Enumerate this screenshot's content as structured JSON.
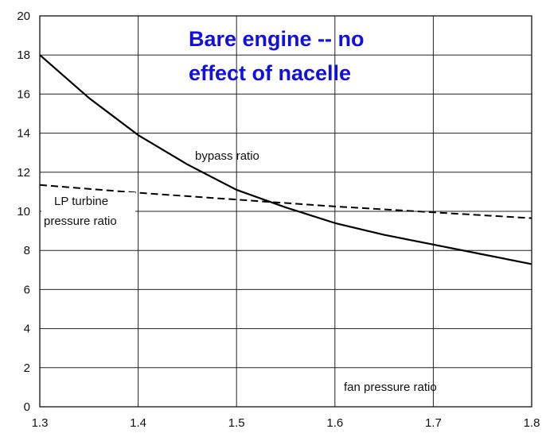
{
  "chart_data": {
    "type": "line",
    "title_lines": [
      "Bare engine -- no",
      "effect of nacelle"
    ],
    "title_color": "#1010e0",
    "xlabel": "fan pressure ratio",
    "ylabel": "",
    "xlim": [
      1.3,
      1.8
    ],
    "ylim": [
      0,
      20
    ],
    "x_ticks": [
      "1.3",
      "1.4",
      "1.5",
      "1.6",
      "1.7",
      "1.8"
    ],
    "y_ticks": [
      "0",
      "2",
      "4",
      "6",
      "8",
      "10",
      "12",
      "14",
      "16",
      "18",
      "20"
    ],
    "grid": true,
    "series": [
      {
        "name": "bypass ratio",
        "style": "solid",
        "color": "#000000",
        "label_lines": [
          "bypass ratio"
        ],
        "x": [
          1.3,
          1.35,
          1.4,
          1.45,
          1.5,
          1.55,
          1.6,
          1.65,
          1.7,
          1.75,
          1.8
        ],
        "y": [
          18.0,
          15.8,
          13.9,
          12.4,
          11.1,
          10.2,
          9.4,
          8.8,
          8.3,
          7.8,
          7.3
        ]
      },
      {
        "name": "LP turbine pressure ratio",
        "style": "dashed",
        "color": "#000000",
        "label_lines": [
          "LP turbine",
          "pressure ratio"
        ],
        "x": [
          1.3,
          1.4,
          1.5,
          1.6,
          1.7,
          1.8
        ],
        "y": [
          11.35,
          10.95,
          10.6,
          10.25,
          9.95,
          9.65
        ]
      }
    ]
  }
}
